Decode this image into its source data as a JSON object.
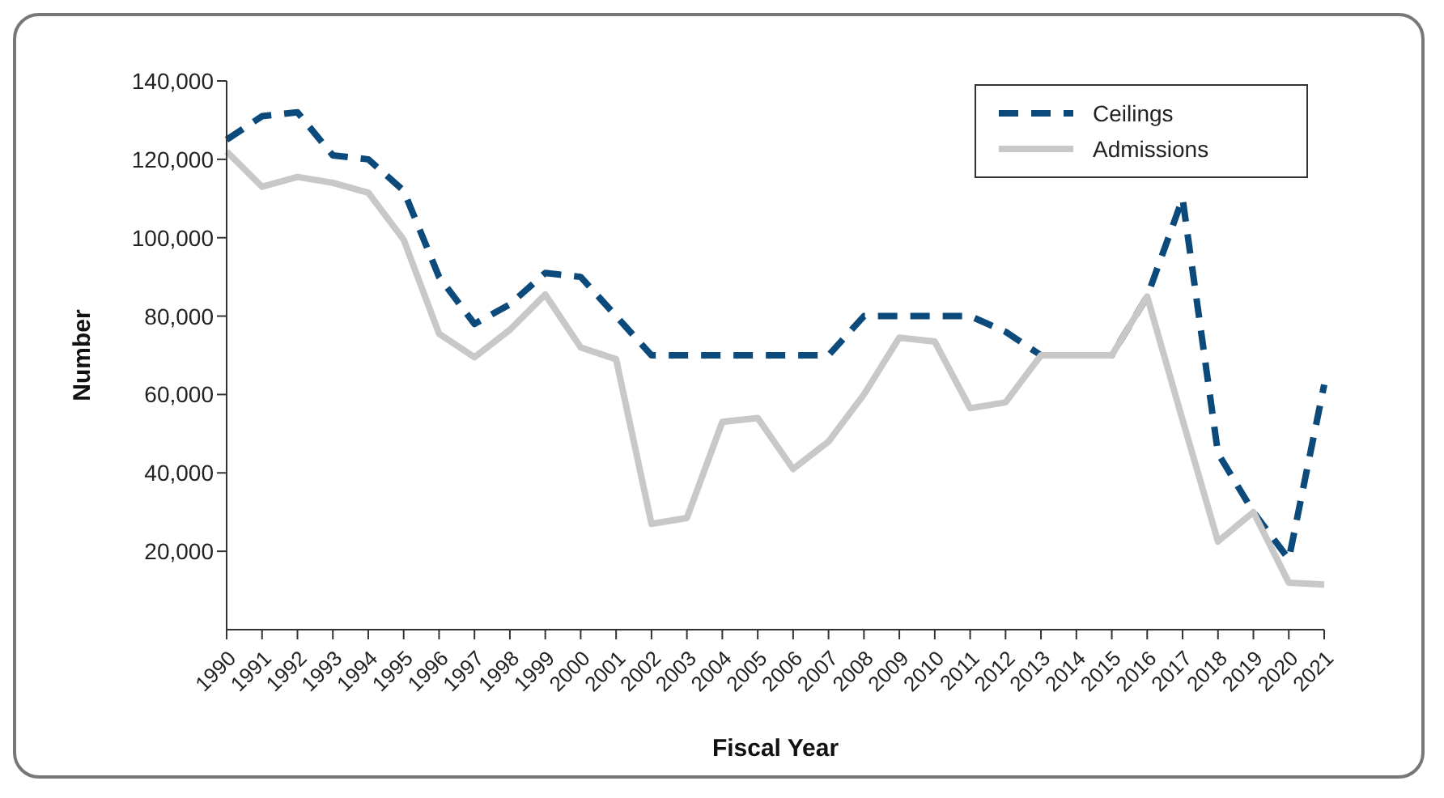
{
  "chart_data": {
    "type": "line",
    "xlabel": "Fiscal Year",
    "ylabel": "Number",
    "categories": [
      "1990",
      "1991",
      "1992",
      "1993",
      "1994",
      "1995",
      "1996",
      "1997",
      "1998",
      "1999",
      "2000",
      "2001",
      "2002",
      "2003",
      "2004",
      "2005",
      "2006",
      "2007",
      "2008",
      "2009",
      "2010",
      "2011",
      "2012",
      "2013",
      "2014",
      "2015",
      "2016",
      "2017",
      "2018",
      "2019",
      "2020",
      "2021"
    ],
    "series": [
      {
        "name": "Ceilings",
        "color": "#0b4a7a",
        "line_style": "dashed",
        "values": [
          125000,
          131000,
          132000,
          121000,
          120000,
          112000,
          90000,
          78000,
          83000,
          91000,
          90000,
          80000,
          70000,
          70000,
          70000,
          70000,
          70000,
          70000,
          80000,
          80000,
          80000,
          80000,
          76000,
          70000,
          70000,
          70000,
          85000,
          110000,
          45000,
          30000,
          18000,
          62500
        ]
      },
      {
        "name": "Admissions",
        "color": "#c8c8c8",
        "line_style": "solid",
        "values": [
          122000,
          113000,
          115500,
          114000,
          111500,
          99500,
          75500,
          69500,
          76500,
          85500,
          72000,
          69000,
          27000,
          28500,
          53000,
          54000,
          41000,
          48000,
          60000,
          74500,
          73500,
          56500,
          58000,
          70000,
          70000,
          70000,
          85000,
          53500,
          22500,
          30000,
          12000,
          11500
        ]
      }
    ],
    "ylim": [
      0,
      140000
    ],
    "yticks": [
      {
        "value": 20000,
        "label": "20,000"
      },
      {
        "value": 40000,
        "label": "40,000"
      },
      {
        "value": 60000,
        "label": "60,000"
      },
      {
        "value": 80000,
        "label": "80,000"
      },
      {
        "value": 100000,
        "label": "100,000"
      },
      {
        "value": 120000,
        "label": "120,000"
      },
      {
        "value": 140000,
        "label": "140,000"
      }
    ],
    "legend": "top right",
    "marker": "none"
  }
}
